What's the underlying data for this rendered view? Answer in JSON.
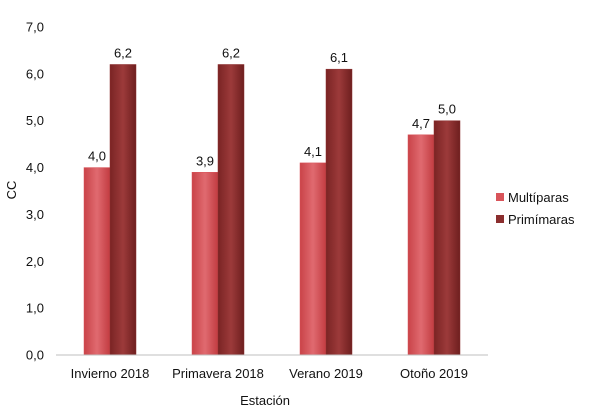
{
  "chart_data": {
    "type": "bar",
    "title": "",
    "xlabel": "Estación",
    "ylabel": "CC",
    "ylim": [
      0,
      7
    ],
    "yticks": [
      "0,0",
      "1,0",
      "2,0",
      "3,0",
      "4,0",
      "5,0",
      "6,0",
      "7,0"
    ],
    "categories": [
      "Invierno 2018",
      "Primavera 2018",
      "Verano 2019",
      "Otoño 2019"
    ],
    "series": [
      {
        "name": "Multíparas",
        "values": [
          4.0,
          3.9,
          4.1,
          4.7
        ],
        "labels": [
          "4,0",
          "3,9",
          "4,1",
          "4,7"
        ],
        "color": "#d9545a"
      },
      {
        "name": "Primímaras",
        "values": [
          6.2,
          6.2,
          6.1,
          5.0
        ],
        "labels": [
          "6,2",
          "6,2",
          "6,1",
          "5,0"
        ],
        "color": "#8b2e2e"
      }
    ],
    "legend_position": "right",
    "grid": false
  }
}
